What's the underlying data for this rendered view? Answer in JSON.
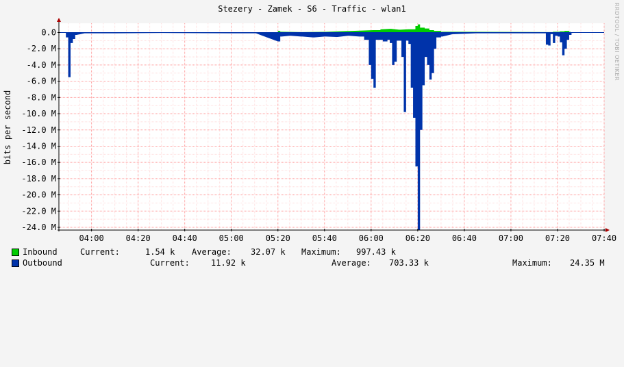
{
  "chart_data": {
    "type": "area",
    "title": "Stezery - Zamek - S6 - Traffic - wlan1",
    "ylabel": "bits per second",
    "watermark": "RRDTOOL / TOBI OETIKER",
    "x_range": [
      "03:46",
      "07:40"
    ],
    "x_ticks": [
      "04:00",
      "04:20",
      "04:40",
      "05:00",
      "05:20",
      "05:40",
      "06:00",
      "06:20",
      "06:40",
      "07:00",
      "07:20",
      "07:40"
    ],
    "ylim": [
      -24000000,
      1000000
    ],
    "y_ticks": [
      0,
      -2000000,
      -4000000,
      -6000000,
      -8000000,
      -10000000,
      -12000000,
      -14000000,
      -16000000,
      -18000000,
      -20000000,
      -22000000,
      -24000000
    ],
    "y_tick_labels": [
      "0.0",
      "-2.0 M",
      "-4.0 M",
      "-6.0 M",
      "-8.0 M",
      "-10.0 M",
      "-12.0 M",
      "-14.0 M",
      "-16.0 M",
      "-18.0 M",
      "-20.0 M",
      "-22.0 M",
      "-24.0 M"
    ],
    "grid": true,
    "colors": {
      "inbound": "#00cc00",
      "outbound": "#0033aa",
      "grid": "#ffaaaa",
      "axis": "#000000",
      "background": "#ffffff",
      "canvas": "#f4f4f4"
    },
    "series": [
      {
        "name": "Inbound",
        "values": [
          [
            "05:20",
            200000
          ],
          [
            "05:21",
            100000
          ],
          [
            "05:30",
            50000
          ],
          [
            "05:40",
            80000
          ],
          [
            "06:01",
            300000
          ],
          [
            "06:04",
            400000
          ],
          [
            "06:08",
            450000
          ],
          [
            "06:12",
            350000
          ],
          [
            "06:16",
            400000
          ],
          [
            "06:19",
            800000
          ],
          [
            "06:20",
            997430
          ],
          [
            "06:21",
            600000
          ],
          [
            "06:23",
            500000
          ],
          [
            "06:25",
            300000
          ],
          [
            "06:27",
            200000
          ],
          [
            "06:30",
            100000
          ],
          [
            "07:15",
            50000
          ],
          [
            "07:18",
            100000
          ],
          [
            "07:21",
            150000
          ],
          [
            "07:23",
            200000
          ],
          [
            "07:25",
            100000
          ]
        ]
      },
      {
        "name": "Outbound",
        "values": [
          [
            "03:49",
            -600000
          ],
          [
            "03:50",
            -5500000
          ],
          [
            "03:51",
            -1300000
          ],
          [
            "03:52",
            -800000
          ],
          [
            "03:53",
            -300000
          ],
          [
            "03:57",
            -100000
          ],
          [
            "04:10",
            -100000
          ],
          [
            "04:30",
            -50000
          ],
          [
            "05:00",
            -100000
          ],
          [
            "05:10",
            -100000
          ],
          [
            "05:20",
            -1100000
          ],
          [
            "05:21",
            -500000
          ],
          [
            "05:25",
            -400000
          ],
          [
            "05:30",
            -500000
          ],
          [
            "05:35",
            -600000
          ],
          [
            "05:40",
            -500000
          ],
          [
            "05:45",
            -550000
          ],
          [
            "05:50",
            -400000
          ],
          [
            "05:55",
            -500000
          ],
          [
            "05:57",
            -900000
          ],
          [
            "05:59",
            -4000000
          ],
          [
            "06:00",
            -5700000
          ],
          [
            "06:01",
            -6800000
          ],
          [
            "06:02",
            -900000
          ],
          [
            "06:05",
            -1100000
          ],
          [
            "06:07",
            -900000
          ],
          [
            "06:08",
            -1300000
          ],
          [
            "06:09",
            -4000000
          ],
          [
            "06:10",
            -3600000
          ],
          [
            "06:11",
            -1000000
          ],
          [
            "06:12",
            -1000000
          ],
          [
            "06:13",
            -3000000
          ],
          [
            "06:14",
            -9800000
          ],
          [
            "06:15",
            -1000000
          ],
          [
            "06:16",
            -1400000
          ],
          [
            "06:17",
            -6800000
          ],
          [
            "06:18",
            -10500000
          ],
          [
            "06:19",
            -16500000
          ],
          [
            "06:20",
            -24350000
          ],
          [
            "06:21",
            -12000000
          ],
          [
            "06:22",
            -6500000
          ],
          [
            "06:23",
            -3000000
          ],
          [
            "06:24",
            -4000000
          ],
          [
            "06:25",
            -5800000
          ],
          [
            "06:26",
            -5000000
          ],
          [
            "06:27",
            -2000000
          ],
          [
            "06:28",
            -600000
          ],
          [
            "06:30",
            -500000
          ],
          [
            "06:35",
            -200000
          ],
          [
            "06:45",
            -100000
          ],
          [
            "07:00",
            -100000
          ],
          [
            "07:14",
            -100000
          ],
          [
            "07:15",
            -1500000
          ],
          [
            "07:16",
            -1600000
          ],
          [
            "07:17",
            -200000
          ],
          [
            "07:18",
            -1300000
          ],
          [
            "07:19",
            -400000
          ],
          [
            "07:20",
            -500000
          ],
          [
            "07:21",
            -1200000
          ],
          [
            "07:22",
            -2800000
          ],
          [
            "07:23",
            -2000000
          ],
          [
            "07:24",
            -900000
          ],
          [
            "07:25",
            -300000
          ],
          [
            "07:26",
            -50000
          ]
        ]
      }
    ]
  },
  "legend": {
    "inbound": {
      "label": "Inbound",
      "current_label": "Current:",
      "current": "1.54 k",
      "average_label": "Average:",
      "average": "32.07 k",
      "maximum_label": "Maximum:",
      "maximum": "997.43 k"
    },
    "outbound": {
      "label": "Outbound",
      "current_label": "Current:",
      "current": "11.92 k",
      "average_label": "Average:",
      "average": "703.33 k",
      "maximum_label": "Maximum:",
      "maximum": "24.35 M"
    }
  }
}
